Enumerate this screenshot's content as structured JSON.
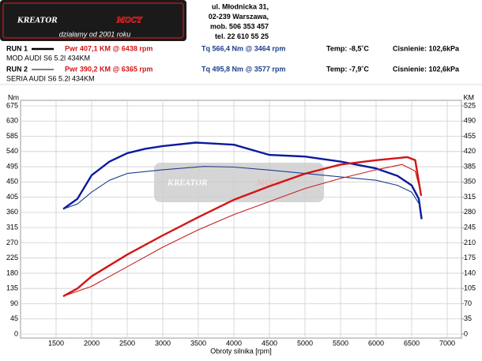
{
  "header": {
    "logo_main": "KREATOR",
    "logo_accent": "MOCY",
    "tagline": "działamy od 2001 roku",
    "address": [
      "ul. Młodnicka 31,",
      "02-239  Warszawa,",
      "mob.  506 353 457",
      "tel.  22 610 55 25"
    ]
  },
  "chart_data": {
    "type": "line",
    "y_label": "Nm",
    "y2_label": "KM",
    "x_label": "Obroty silnika [rpm]",
    "xlim": [
      1000,
      7200
    ],
    "xticks": [
      1500,
      2000,
      2500,
      3000,
      3500,
      4000,
      4500,
      5000,
      5500,
      6000,
      6500,
      7000
    ],
    "ylim": [
      0,
      675
    ],
    "yticks": [
      0,
      45,
      90,
      135,
      180,
      225,
      270,
      315,
      360,
      405,
      450,
      495,
      540,
      585,
      630,
      675
    ],
    "y2lim": [
      0,
      525
    ],
    "y2ticks": [
      0,
      35,
      70,
      105,
      140,
      175,
      210,
      245,
      280,
      315,
      350,
      385,
      420,
      455,
      490,
      525
    ],
    "grid": true,
    "runs": [
      {
        "name": "RUN 1",
        "car": "MOD AUDI S6 5.2l 434KM",
        "pwr": "Pwr  407,1 KM @ 6438 rpm",
        "tq": "Tq 566,4 Nm @ 3464 rpm",
        "temp": "Temp: -8,5˚C",
        "pressure": "Cisnienie: 102,6kPa",
        "torque": {
          "color": "#0b1a9e",
          "x": [
            1600,
            1800,
            2000,
            2250,
            2500,
            2750,
            3000,
            3464,
            4000,
            4500,
            5000,
            5500,
            6000,
            6300,
            6500,
            6600,
            6640
          ],
          "values": [
            370,
            400,
            470,
            510,
            535,
            548,
            556,
            566.4,
            560,
            530,
            525,
            510,
            490,
            468,
            440,
            400,
            340
          ]
        },
        "power": {
          "color": "#d41414",
          "x": [
            1600,
            1800,
            2000,
            2500,
            3000,
            3500,
            4000,
            4500,
            5000,
            5500,
            6000,
            6438,
            6550,
            6633
          ],
          "values": [
            87,
            105,
            133,
            183,
            227,
            269,
            309,
            340,
            369,
            390,
            400,
            407.1,
            400,
            318
          ]
        }
      },
      {
        "name": "RUN 2",
        "car": "SERIA AUDI S6 5.2l 434KM",
        "pwr": "Pwr  390,2 KM @ 6365 rpm",
        "tq": "Tq 495,8 Nm @ 3577 rpm",
        "temp": "Temp: -7,9˚C",
        "pressure": "Cisnienie: 102,6kPa",
        "torque": {
          "color": "#1d3f8c",
          "x": [
            1600,
            1800,
            2000,
            2250,
            2500,
            3000,
            3577,
            4000,
            4500,
            5000,
            5500,
            6000,
            6300,
            6500,
            6620
          ],
          "values": [
            370,
            385,
            420,
            455,
            475,
            486,
            495.8,
            494,
            485,
            475,
            465,
            455,
            440,
            420,
            380
          ]
        },
        "power": {
          "color": "#c42222",
          "x": [
            1600,
            2000,
            2500,
            3000,
            3500,
            4000,
            4500,
            5000,
            5500,
            6000,
            6365,
            6550,
            6620
          ],
          "values": [
            87,
            110,
            155,
            200,
            240,
            275,
            305,
            335,
            358,
            378,
            390.2,
            375,
            330
          ]
        }
      }
    ]
  }
}
